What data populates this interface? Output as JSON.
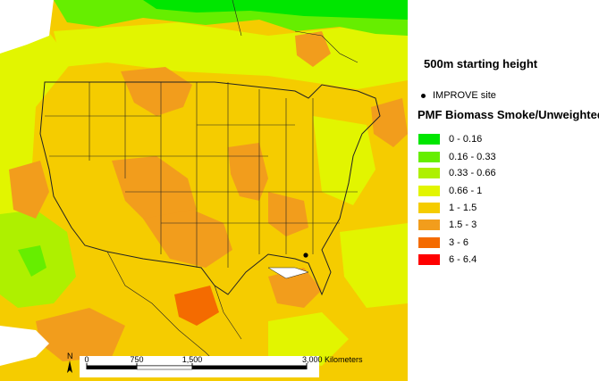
{
  "legend": {
    "height_title": "500m starting height",
    "site_marker_label": "IMPROVE site",
    "title": "PMF Biomass Smoke/Unweighted",
    "classes": [
      {
        "label": "0 - 0.16",
        "color": "#00e600"
      },
      {
        "label": "0.16 - 0.33",
        "color": "#66ee00"
      },
      {
        "label": "0.33 - 0.66",
        "color": "#aef000"
      },
      {
        "label": "0.66 - 1",
        "color": "#e2f500"
      },
      {
        "label": "1 - 1.5",
        "color": "#f5cc00"
      },
      {
        "label": "1.5 - 3",
        "color": "#f29d1c"
      },
      {
        "label": "3 - 6",
        "color": "#f46b00"
      },
      {
        "label": "6 - 6.4",
        "color": "#ff0000"
      }
    ]
  },
  "scalebar": {
    "ticks": [
      "0",
      "750",
      "1,500",
      "3,000 Kilometers"
    ]
  },
  "north_arrow": {
    "label": "N"
  },
  "colors": {
    "water": "#ffffff",
    "boundary": "#222222"
  }
}
